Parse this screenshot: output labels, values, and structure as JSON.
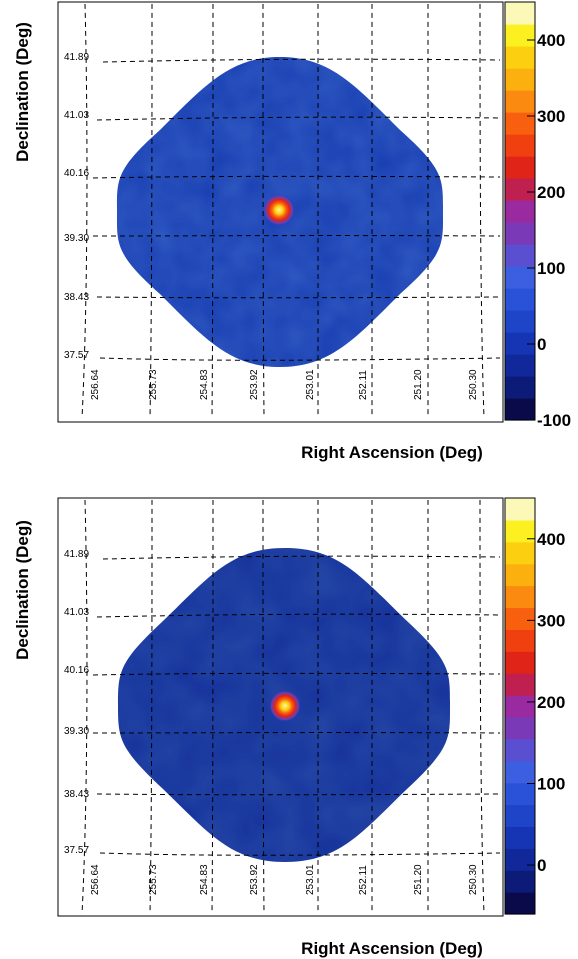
{
  "chart_data": [
    {
      "type": "heatmap",
      "panel": "top",
      "ylabel": "Declination (Deg)",
      "xlabel": "Right Ascension (Deg)",
      "dec_grid_labels": [
        "41.89",
        "41.03",
        "40.16",
        "39.30",
        "38.43",
        "37.57"
      ],
      "ra_grid_labels": [
        "256.64",
        "255.73",
        "254.83",
        "253.92",
        "253.01",
        "252.11",
        "251.20",
        "250.30"
      ],
      "colorbar_ticks": [
        "400",
        "300",
        "200",
        "100",
        "0",
        "-100"
      ],
      "colorbar_range": [
        -100,
        450
      ],
      "background_level": 0,
      "source": {
        "ra": 253.47,
        "dec": 39.76,
        "peak": 450
      }
    },
    {
      "type": "heatmap",
      "panel": "bottom",
      "ylabel": "Declination (Deg)",
      "xlabel": "Right Ascension (Deg)",
      "dec_grid_labels": [
        "41.89",
        "41.03",
        "40.16",
        "39.30",
        "38.43",
        "37.57"
      ],
      "ra_grid_labels": [
        "256.64",
        "255.73",
        "254.83",
        "253.92",
        "253.01",
        "252.11",
        "251.20",
        "250.30"
      ],
      "colorbar_ticks": [
        "400",
        "300",
        "200",
        "100",
        "0"
      ],
      "colorbar_range": [
        -60,
        450
      ],
      "background_level": -20,
      "source": {
        "ra": 253.47,
        "dec": 39.76,
        "peak": 450
      }
    }
  ],
  "colors": {
    "colormap": [
      "#0a0a4a",
      "#0c1a78",
      "#10289a",
      "#1535b4",
      "#1e44c8",
      "#2a52d8",
      "#3b5fe0",
      "#5a4fd0",
      "#7a3ab8",
      "#9a2aa0",
      "#c02050",
      "#e02418",
      "#f04010",
      "#f86010",
      "#fb8a10",
      "#fcb010",
      "#fcd010",
      "#fcf020",
      "#fcf8b8"
    ]
  }
}
